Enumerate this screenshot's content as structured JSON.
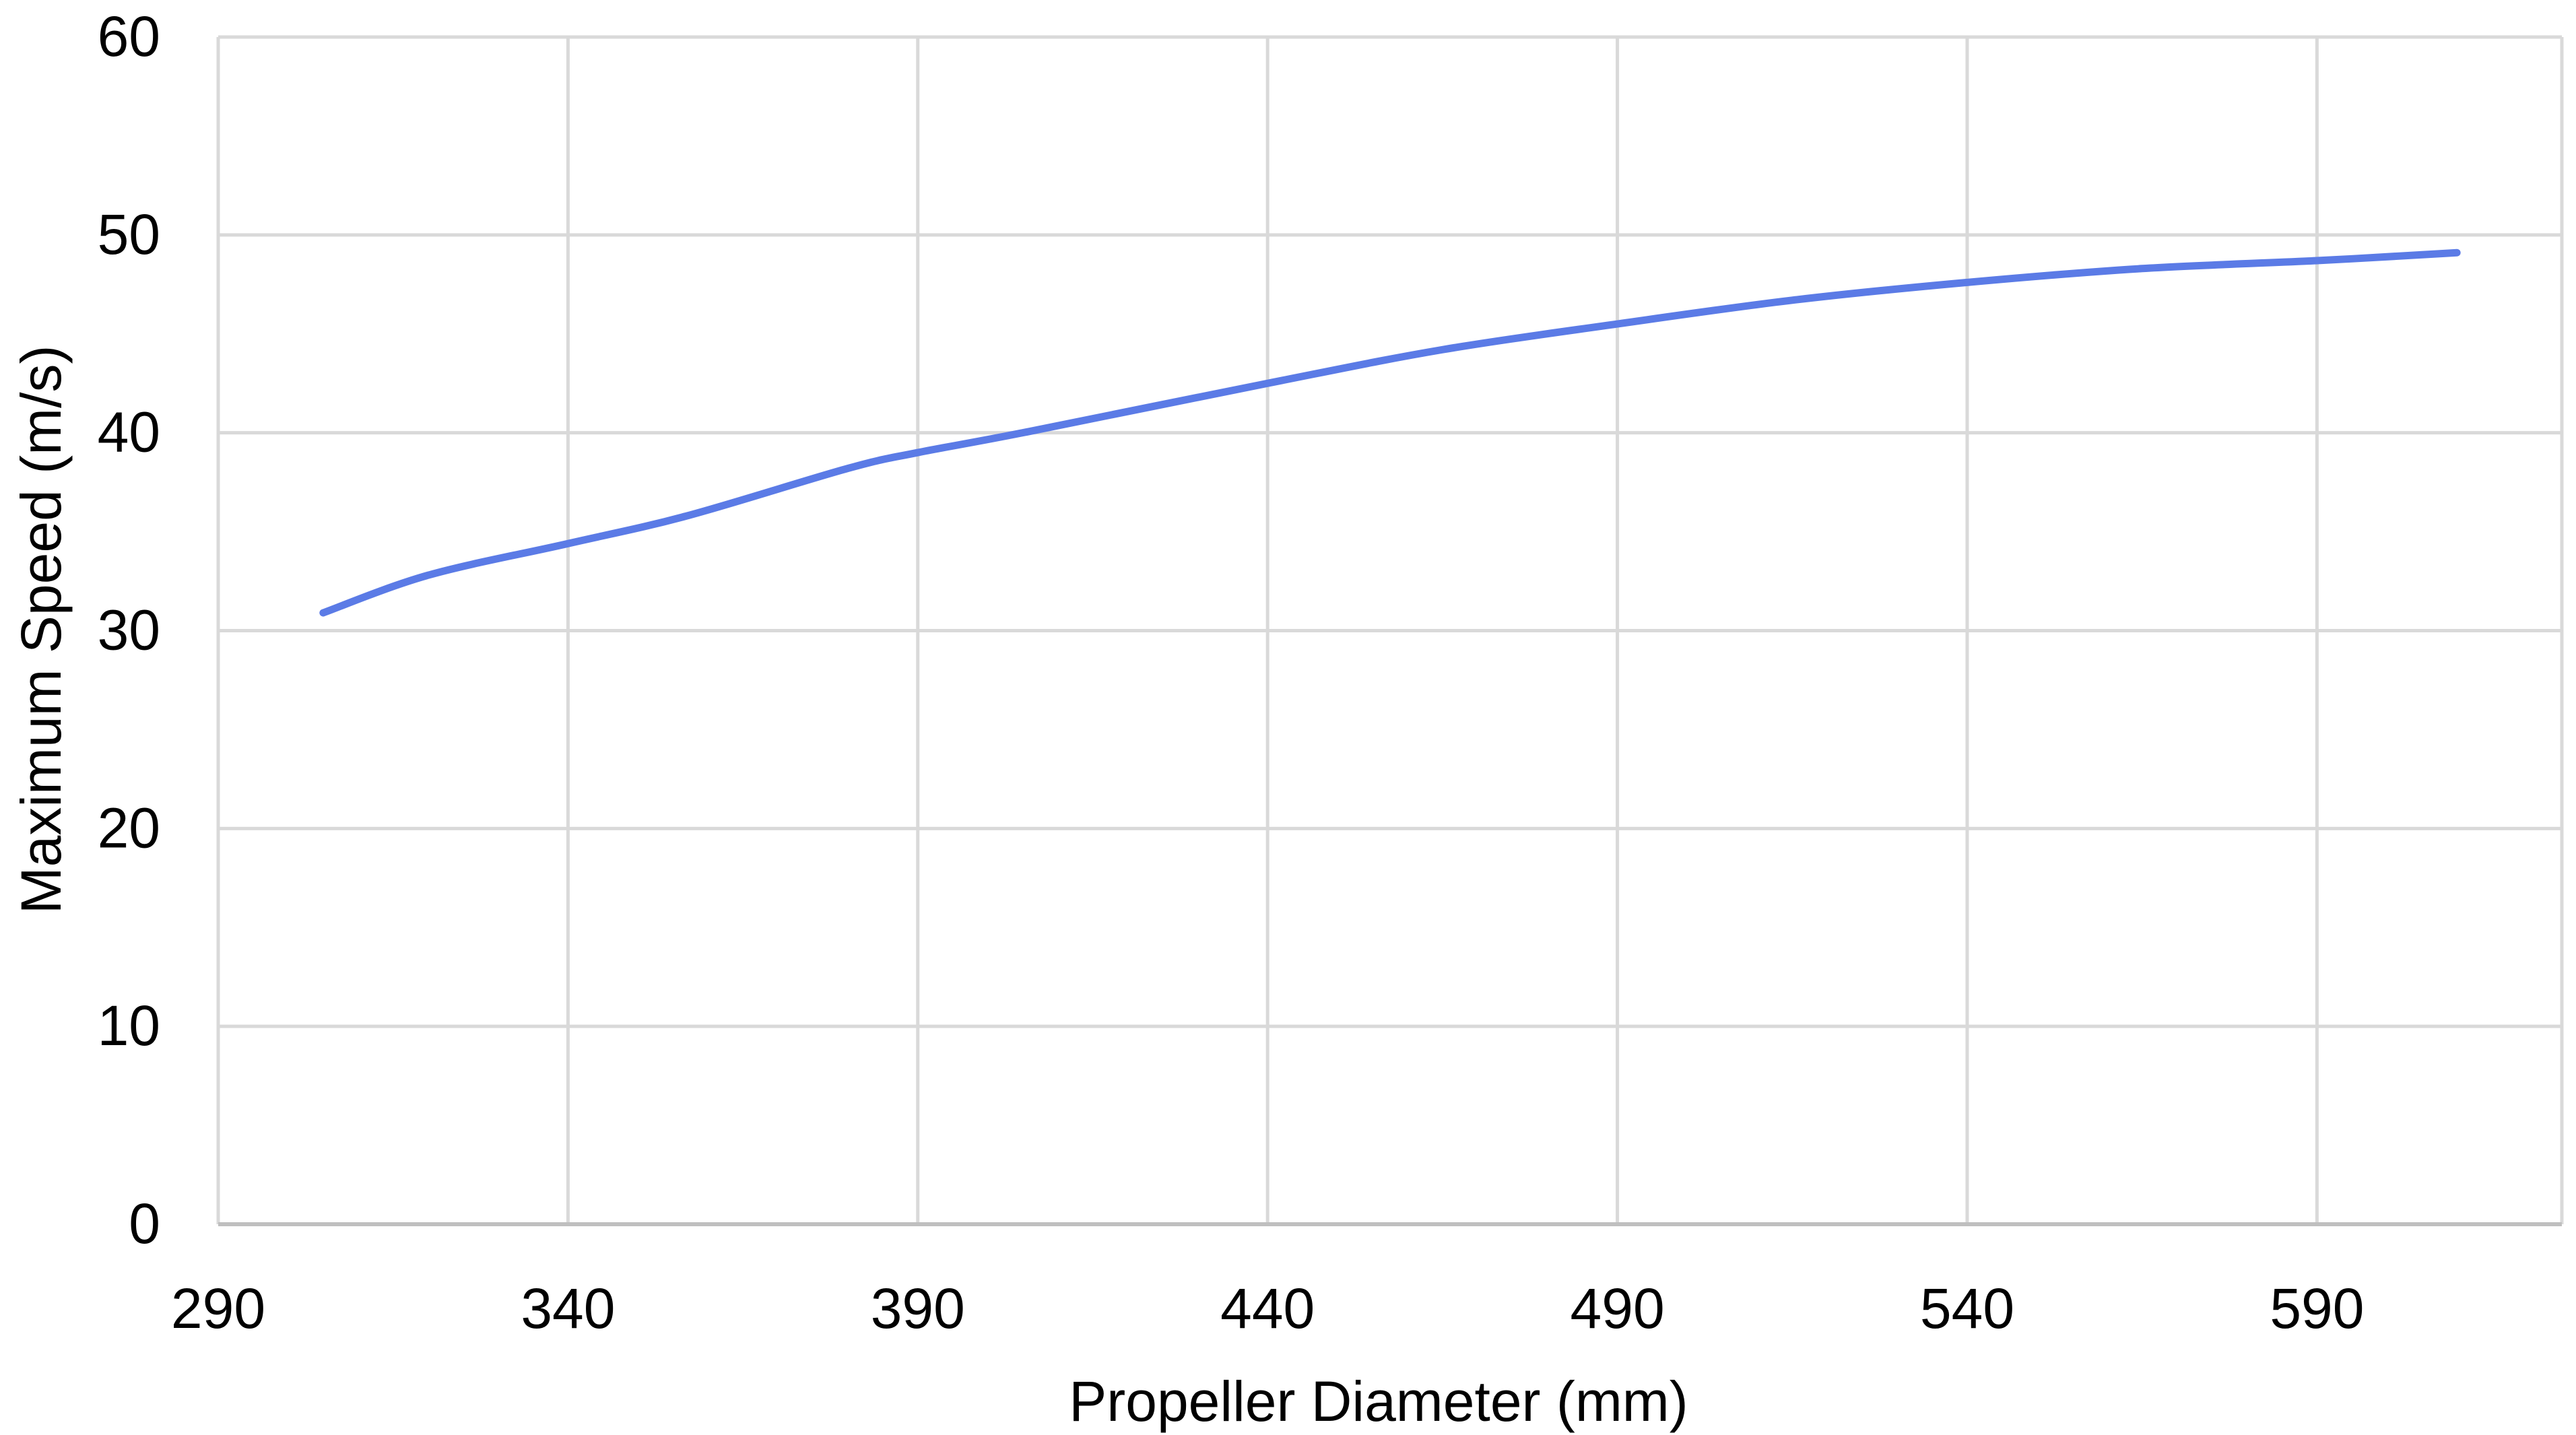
{
  "chart_data": {
    "type": "line",
    "title": "",
    "xlabel": "Propeller Diameter (mm)",
    "ylabel": "Maximum Speed (m/s)",
    "xlim": [
      290,
      625
    ],
    "ylim": [
      0,
      60
    ],
    "x_ticks": [
      290,
      340,
      390,
      440,
      490,
      540,
      590
    ],
    "y_ticks": [
      0,
      10,
      20,
      30,
      40,
      50,
      60
    ],
    "grid": true,
    "legend": "none",
    "series": [
      {
        "color": "#5B7BE6",
        "points": [
          {
            "x": 305,
            "y": 30.9
          },
          {
            "x": 320,
            "y": 32.8
          },
          {
            "x": 340,
            "y": 34.4
          },
          {
            "x": 357,
            "y": 35.8
          },
          {
            "x": 380,
            "y": 38.2
          },
          {
            "x": 390,
            "y": 39.0
          },
          {
            "x": 405,
            "y": 40.0
          },
          {
            "x": 440,
            "y": 42.5
          },
          {
            "x": 465,
            "y": 44.2
          },
          {
            "x": 490,
            "y": 45.5
          },
          {
            "x": 515,
            "y": 46.7
          },
          {
            "x": 540,
            "y": 47.6
          },
          {
            "x": 565,
            "y": 48.3
          },
          {
            "x": 590,
            "y": 48.7
          },
          {
            "x": 610,
            "y": 49.1
          }
        ]
      }
    ]
  },
  "colors": {
    "series": "#5B7BE6",
    "grid": "#D9D9D9",
    "axis": "#BFBFBF",
    "text": "#000000",
    "background": "#FFFFFF"
  }
}
